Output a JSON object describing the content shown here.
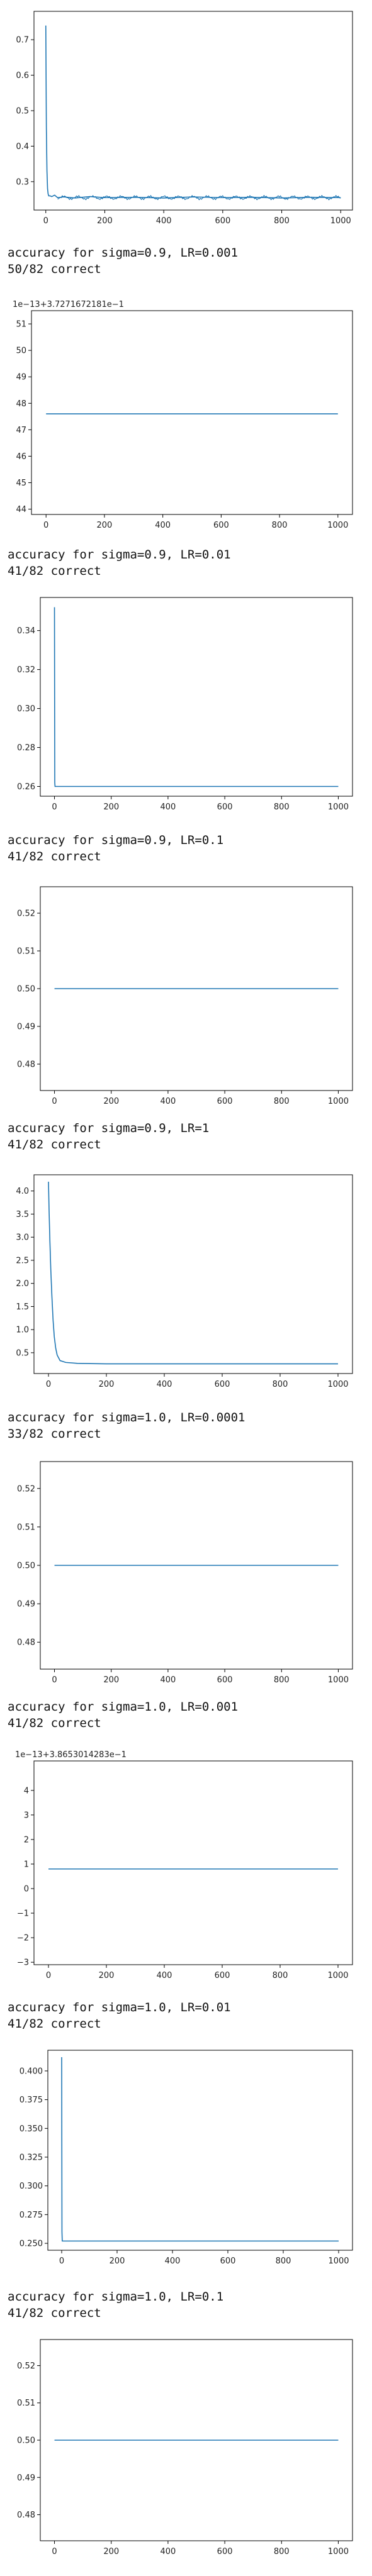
{
  "outputs": [
    {
      "label": "",
      "result": ""
    },
    {
      "label": "accuracy for sigma=0.9, LR=0.001",
      "result": "50/82 correct"
    },
    {
      "label": "accuracy for sigma=0.9, LR=0.01",
      "result": "41/82 correct"
    },
    {
      "label": "accuracy for sigma=0.9, LR=0.1",
      "result": "41/82 correct"
    },
    {
      "label": "accuracy for sigma=0.9, LR=1",
      "result": "41/82 correct"
    },
    {
      "label": "accuracy for sigma=1.0, LR=0.0001",
      "result": "33/82 correct"
    },
    {
      "label": "accuracy for sigma=1.0, LR=0.001",
      "result": "41/82 correct"
    },
    {
      "label": "accuracy for sigma=1.0, LR=0.01",
      "result": "41/82 correct"
    },
    {
      "label": "accuracy for sigma=1.0, LR=0.1",
      "result": "41/82 correct"
    }
  ],
  "chart_data": [
    {
      "type": "line",
      "offset_text": "",
      "xlim": [
        -40,
        1040
      ],
      "ylim": [
        0.22,
        0.78
      ],
      "x_ticks": [
        0,
        200,
        400,
        600,
        800,
        1000
      ],
      "y_ticks": [
        0.3,
        0.4,
        0.5,
        0.6,
        0.7
      ],
      "y_tick_labels": [
        "0.3",
        "0.4",
        "0.5",
        "0.6",
        "0.7"
      ],
      "series_color": "#1f77b4",
      "x": [
        0,
        2,
        4,
        6,
        8,
        10,
        15,
        20,
        30,
        40,
        60,
        100,
        150,
        200,
        300,
        400,
        500,
        600,
        700,
        800,
        900,
        1000
      ],
      "y": [
        0.74,
        0.45,
        0.33,
        0.28,
        0.265,
        0.26,
        0.26,
        0.258,
        0.262,
        0.255,
        0.257,
        0.254,
        0.258,
        0.255,
        0.256,
        0.254,
        0.257,
        0.255,
        0.256,
        0.254,
        0.256,
        0.255
      ]
    },
    {
      "type": "line",
      "offset_text": "1e−13+3.7271672181e−1",
      "xlim": [
        -50,
        1050
      ],
      "ylim": [
        43.8,
        51.5
      ],
      "x_ticks": [
        0,
        200,
        400,
        600,
        800,
        1000
      ],
      "y_ticks": [
        44,
        45,
        46,
        47,
        48,
        49,
        50,
        51
      ],
      "y_tick_labels": [
        "44",
        "45",
        "46",
        "47",
        "48",
        "49",
        "50",
        "51"
      ],
      "series_color": "#1f77b4",
      "x": [
        0,
        1000
      ],
      "y": [
        47.6,
        47.6
      ]
    },
    {
      "type": "line",
      "offset_text": "",
      "xlim": [
        -50,
        1050
      ],
      "ylim": [
        0.255,
        0.357
      ],
      "x_ticks": [
        0,
        200,
        400,
        600,
        800,
        1000
      ],
      "y_ticks": [
        0.26,
        0.28,
        0.3,
        0.32,
        0.34
      ],
      "y_tick_labels": [
        "0.26",
        "0.28",
        "0.30",
        "0.32",
        "0.34"
      ],
      "series_color": "#1f77b4",
      "x": [
        0,
        1,
        2,
        1000
      ],
      "y": [
        0.352,
        0.262,
        0.26,
        0.26
      ]
    },
    {
      "type": "line",
      "offset_text": "",
      "xlim": [
        -50,
        1050
      ],
      "ylim": [
        0.473,
        0.527
      ],
      "x_ticks": [
        0,
        200,
        400,
        600,
        800,
        1000
      ],
      "y_ticks": [
        0.48,
        0.49,
        0.5,
        0.51,
        0.52
      ],
      "y_tick_labels": [
        "0.48",
        "0.49",
        "0.50",
        "0.51",
        "0.52"
      ],
      "series_color": "#1f77b4",
      "x": [
        0,
        1000
      ],
      "y": [
        0.5,
        0.5
      ]
    },
    {
      "type": "line",
      "offset_text": "",
      "xlim": [
        -50,
        1050
      ],
      "ylim": [
        0.05,
        4.35
      ],
      "x_ticks": [
        0,
        200,
        400,
        600,
        800,
        1000
      ],
      "y_ticks": [
        0.5,
        1.0,
        1.5,
        2.0,
        2.5,
        3.0,
        3.5,
        4.0
      ],
      "y_tick_labels": [
        "0.5",
        "1.0",
        "1.5",
        "2.0",
        "2.5",
        "3.0",
        "3.5",
        "4.0"
      ],
      "series_color": "#1f77b4",
      "x": [
        0,
        2,
        5,
        8,
        12,
        16,
        20,
        25,
        30,
        40,
        60,
        100,
        200,
        400,
        600,
        800,
        1000
      ],
      "y": [
        4.2,
        3.6,
        2.9,
        2.3,
        1.7,
        1.2,
        0.85,
        0.6,
        0.45,
        0.33,
        0.29,
        0.27,
        0.26,
        0.26,
        0.26,
        0.26,
        0.26
      ]
    },
    {
      "type": "line",
      "offset_text": "",
      "xlim": [
        -50,
        1050
      ],
      "ylim": [
        0.473,
        0.527
      ],
      "x_ticks": [
        0,
        200,
        400,
        600,
        800,
        1000
      ],
      "y_ticks": [
        0.48,
        0.49,
        0.5,
        0.51,
        0.52
      ],
      "y_tick_labels": [
        "0.48",
        "0.49",
        "0.50",
        "0.51",
        "0.52"
      ],
      "series_color": "#1f77b4",
      "x": [
        0,
        1000
      ],
      "y": [
        0.5,
        0.5
      ]
    },
    {
      "type": "line",
      "offset_text": "1e−13+3.8653014283e−1",
      "xlim": [
        -50,
        1050
      ],
      "ylim": [
        -3.1,
        5.2
      ],
      "x_ticks": [
        0,
        200,
        400,
        600,
        800,
        1000
      ],
      "y_ticks": [
        -3,
        -2,
        -1,
        0,
        1,
        2,
        3,
        4
      ],
      "y_tick_labels": [
        "−3",
        "−2",
        "−1",
        "0",
        "1",
        "2",
        "3",
        "4"
      ],
      "series_color": "#1f77b4",
      "x": [
        0,
        1000
      ],
      "y": [
        0.8,
        0.8
      ]
    },
    {
      "type": "line",
      "offset_text": "",
      "xlim": [
        -50,
        1050
      ],
      "ylim": [
        0.244,
        0.418
      ],
      "x_ticks": [
        0,
        200,
        400,
        600,
        800,
        1000
      ],
      "y_ticks": [
        0.25,
        0.275,
        0.3,
        0.325,
        0.35,
        0.375,
        0.4
      ],
      "y_tick_labels": [
        "0.250",
        "0.275",
        "0.300",
        "0.325",
        "0.350",
        "0.375",
        "0.400"
      ],
      "series_color": "#1f77b4",
      "x": [
        0,
        1,
        2,
        1000
      ],
      "y": [
        0.412,
        0.26,
        0.252,
        0.252
      ]
    },
    {
      "type": "line",
      "offset_text": "",
      "xlim": [
        -50,
        1050
      ],
      "ylim": [
        0.473,
        0.527
      ],
      "x_ticks": [
        0,
        200,
        400,
        600,
        800,
        1000
      ],
      "y_ticks": [
        0.48,
        0.49,
        0.5,
        0.51,
        0.52
      ],
      "y_tick_labels": [
        "0.48",
        "0.49",
        "0.50",
        "0.51",
        "0.52"
      ],
      "series_color": "#1f77b4",
      "x": [
        0,
        1000
      ],
      "y": [
        0.5,
        0.5
      ]
    }
  ]
}
